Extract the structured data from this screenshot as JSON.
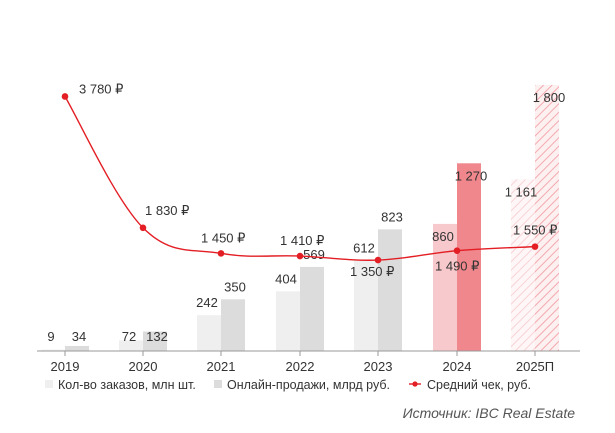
{
  "chart_data": {
    "type": "bar",
    "categories": [
      "2019",
      "2020",
      "2021",
      "2022",
      "2023",
      "2024",
      "2025П"
    ],
    "series": [
      {
        "name": "Кол-во заказов, млн шт.",
        "type": "bar",
        "values": [
          9,
          72,
          242,
          404,
          612,
          860,
          1161
        ],
        "labels": [
          "9",
          "72",
          "242",
          "404",
          "612",
          "860",
          "1 161"
        ]
      },
      {
        "name": "Онлайн-продажи, млрд руб.",
        "type": "bar",
        "values": [
          34,
          132,
          350,
          569,
          823,
          1270,
          1800
        ],
        "labels": [
          "34",
          "132",
          "350",
          "569",
          "823",
          "1 270",
          "1 800"
        ]
      },
      {
        "name": "Средний чек, руб.",
        "type": "line",
        "values": [
          3780,
          1830,
          1450,
          1410,
          1350,
          1490,
          1550
        ],
        "labels": [
          "3 780 ₽",
          "1 830 ₽",
          "1 450 ₽",
          "1 410 ₽",
          "1 350 ₽",
          "1 490 ₽",
          "1 550 ₽"
        ]
      }
    ],
    "bar_ylim": [
      0,
      2050
    ],
    "line_ylim": [
      0,
      4500
    ],
    "grid": false,
    "legend_position": "bottom",
    "highlighted_category": "2024",
    "forecast_category": "2025П",
    "colors": {
      "orders": "#efefef",
      "sales": "#dcdcdc",
      "orders_2024": "#f8c9cc",
      "sales_2024": "#f0878d",
      "forecast": "#f8cdd0",
      "line": "#e31e24",
      "axis": "#999999",
      "text": "#333333"
    }
  },
  "source": "Источник: IBC Real Estate"
}
